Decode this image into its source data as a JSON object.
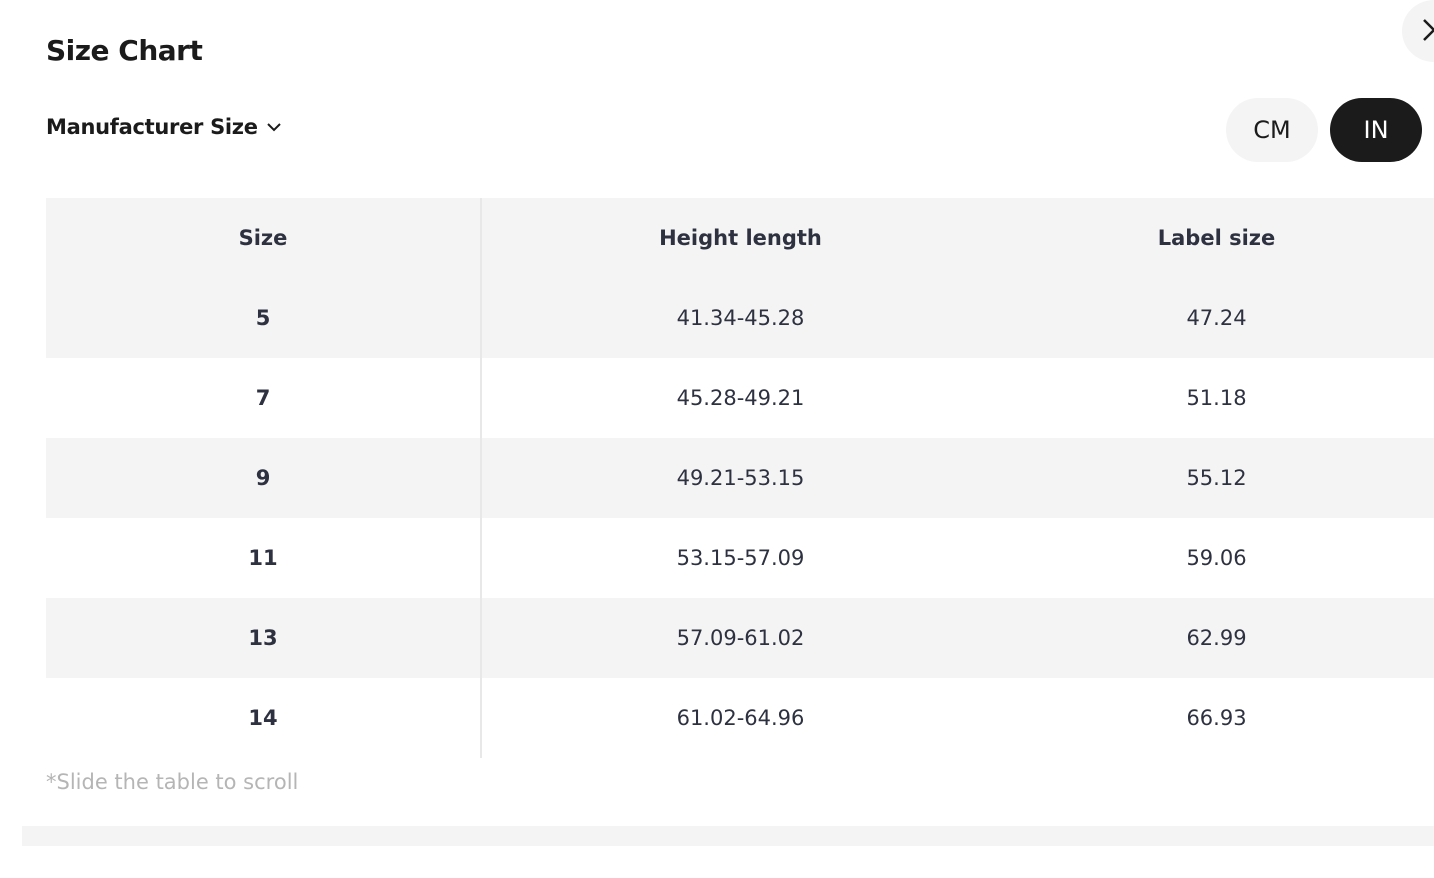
{
  "title": "Size Chart",
  "size_system": "Manufacturer Size",
  "units": [
    {
      "label": "CM",
      "selected": false
    },
    {
      "label": "IN",
      "selected": true
    }
  ],
  "table": {
    "headers": [
      "Size",
      "Height length",
      "Label size"
    ],
    "rows": [
      [
        "5",
        "41.34-45.28",
        "47.24"
      ],
      [
        "7",
        "45.28-49.21",
        "51.18"
      ],
      [
        "9",
        "49.21-53.15",
        "55.12"
      ],
      [
        "11",
        "53.15-57.09",
        "59.06"
      ],
      [
        "13",
        "57.09-61.02",
        "62.99"
      ],
      [
        "14",
        "61.02-64.96",
        "66.93"
      ]
    ]
  },
  "note": "*Slide the table to scroll"
}
